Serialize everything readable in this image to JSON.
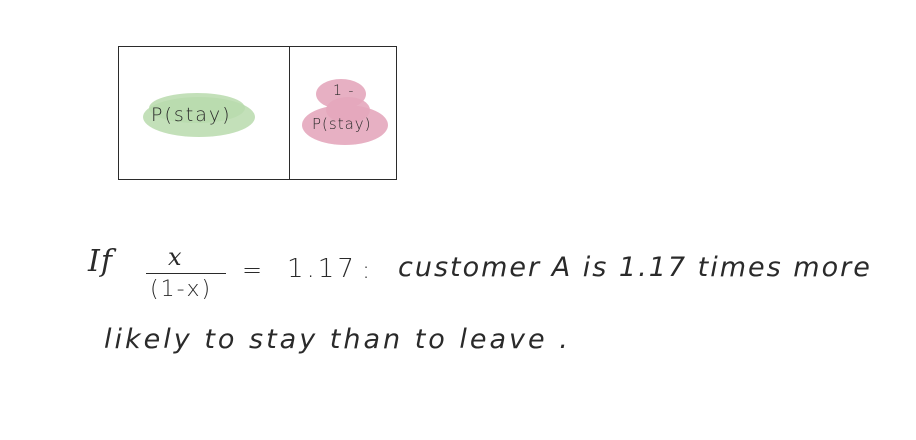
{
  "diagram": {
    "stay_label": "P(stay)",
    "leave_label_top": "1 -",
    "leave_label_bottom": "P(stay)"
  },
  "equation": {
    "if_word": "If",
    "numerator": "x",
    "denominator": "(1-x)",
    "equals": "=",
    "value": "1.17",
    "colon": ":",
    "sentence_line1": "customer A is 1.17 times more",
    "sentence_line2": "likely to stay than to leave ."
  },
  "colors": {
    "stay_highlight": "#b8dbad",
    "leave_highlight": "#e4a7bd",
    "ink": "#2a2a2a",
    "background": "#ffffff"
  }
}
